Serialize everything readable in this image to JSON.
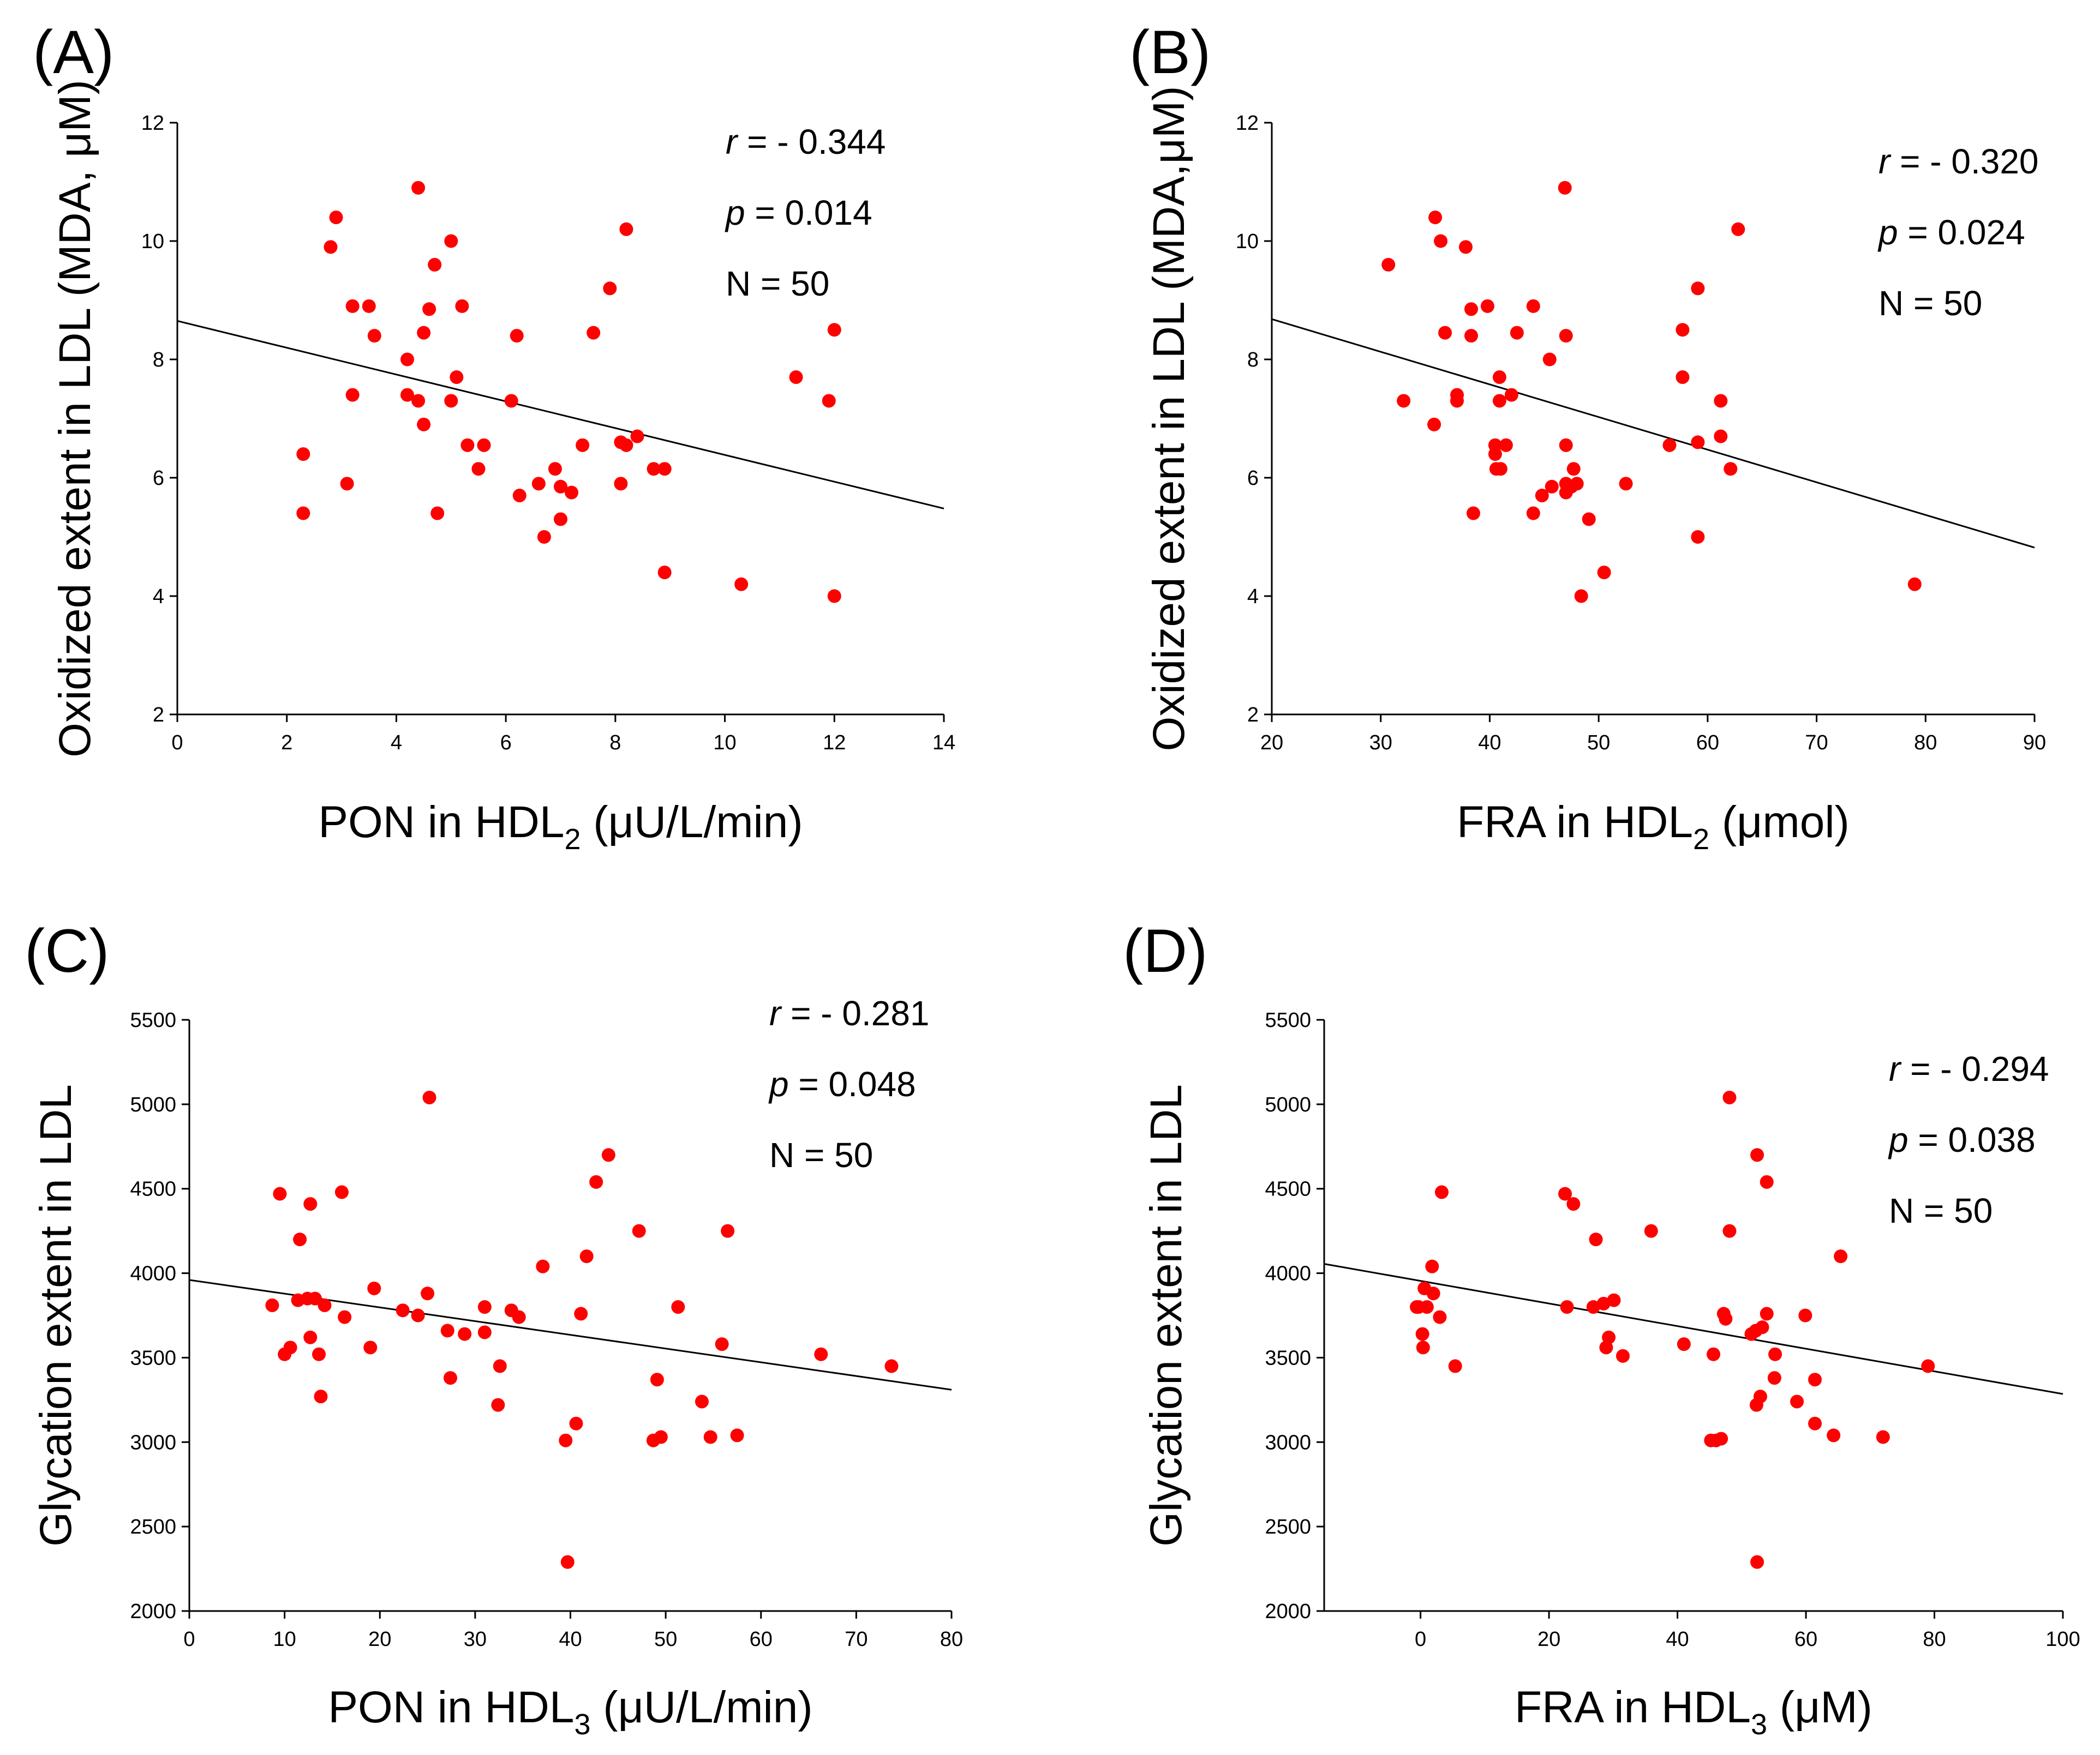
{
  "chart_data": [
    {
      "type": "scatter",
      "panel": "(A)",
      "xlabel_main": "PON in HDL",
      "xlabel_sub": "2",
      "xlabel_tail": " (μU/L/min)",
      "ylabel": "Oxidized extent in LDL (MDA, μM)",
      "xlim": [
        0,
        14
      ],
      "ylim": [
        2,
        12
      ],
      "xticks": [
        0,
        2,
        4,
        6,
        8,
        10,
        12,
        14
      ],
      "yticks": [
        2,
        4,
        6,
        8,
        10,
        12
      ],
      "xtick_labels": [
        "0",
        "2",
        "4",
        "6",
        "8",
        "10",
        "12",
        "14"
      ],
      "ytick_labels": [
        "2",
        "4",
        "6",
        "8",
        "10",
        "12"
      ],
      "regression": {
        "x0": 0,
        "y0": 8.65,
        "x1": 14,
        "y1": 5.48
      },
      "stats": {
        "r_label": "r",
        "r_value": " = - 0.344",
        "p_label": "p",
        "p_value": " = 0.014",
        "n_text": "N = 50"
      },
      "points": [
        [
          2.3,
          6.4
        ],
        [
          2.3,
          5.4
        ],
        [
          2.8,
          9.9
        ],
        [
          2.9,
          10.4
        ],
        [
          3.1,
          5.9
        ],
        [
          3.2,
          8.9
        ],
        [
          3.2,
          7.4
        ],
        [
          3.5,
          8.9
        ],
        [
          3.6,
          8.4
        ],
        [
          4.2,
          8.0
        ],
        [
          4.2,
          7.4
        ],
        [
          4.4,
          7.3
        ],
        [
          4.4,
          10.9
        ],
        [
          4.5,
          8.45
        ],
        [
          4.5,
          6.9
        ],
        [
          4.6,
          8.85
        ],
        [
          4.7,
          9.6
        ],
        [
          4.75,
          5.4
        ],
        [
          5.0,
          10.0
        ],
        [
          5.0,
          7.3
        ],
        [
          5.1,
          7.7
        ],
        [
          5.2,
          8.9
        ],
        [
          5.3,
          6.55
        ],
        [
          5.5,
          6.15
        ],
        [
          5.6,
          6.55
        ],
        [
          6.1,
          7.3
        ],
        [
          6.2,
          8.4
        ],
        [
          6.25,
          5.7
        ],
        [
          6.6,
          5.9
        ],
        [
          6.7,
          5.0
        ],
        [
          6.9,
          6.15
        ],
        [
          7.0,
          5.85
        ],
        [
          7.0,
          5.3
        ],
        [
          7.2,
          5.75
        ],
        [
          7.4,
          6.55
        ],
        [
          7.6,
          8.45
        ],
        [
          7.9,
          9.2
        ],
        [
          8.1,
          5.9
        ],
        [
          8.1,
          6.6
        ],
        [
          8.2,
          6.55
        ],
        [
          8.2,
          10.2
        ],
        [
          8.4,
          6.7
        ],
        [
          8.7,
          6.15
        ],
        [
          8.9,
          6.15
        ],
        [
          8.9,
          4.4
        ],
        [
          10.3,
          4.2
        ],
        [
          11.3,
          7.7
        ],
        [
          11.9,
          7.3
        ],
        [
          12.0,
          8.5
        ],
        [
          12.0,
          4.0
        ]
      ]
    },
    {
      "type": "scatter",
      "panel": "(B)",
      "xlabel_main": "FRA in HDL",
      "xlabel_sub": "2",
      "xlabel_tail": " (μmol)",
      "ylabel": "Oxidized extent in LDL (MDA,μM)",
      "xlim": [
        20,
        90
      ],
      "ylim": [
        2,
        12
      ],
      "xticks": [
        20,
        30,
        40,
        50,
        60,
        70,
        80,
        90
      ],
      "yticks": [
        2,
        4,
        6,
        8,
        10,
        12
      ],
      "xtick_labels": [
        "20",
        "30",
        "40",
        "50",
        "60",
        "70",
        "80",
        "90"
      ],
      "ytick_labels": [
        "2",
        "4",
        "6",
        "8",
        "10",
        "12"
      ],
      "regression": {
        "x0": 20,
        "y0": 8.68,
        "x1": 90,
        "y1": 4.82
      },
      "stats": {
        "r_label": "r",
        "r_value": " = - 0.320",
        "p_label": "p",
        "p_value": " = 0.024",
        "n_text": "N = 50"
      },
      "points": [
        [
          30.7,
          9.6
        ],
        [
          32.1,
          7.3
        ],
        [
          34.9,
          6.9
        ],
        [
          35.0,
          10.4
        ],
        [
          35.5,
          10.0
        ],
        [
          35.9,
          8.45
        ],
        [
          37.0,
          7.4
        ],
        [
          37.0,
          7.3
        ],
        [
          37.8,
          9.9
        ],
        [
          38.3,
          8.85
        ],
        [
          38.3,
          8.4
        ],
        [
          38.5,
          5.4
        ],
        [
          39.8,
          8.9
        ],
        [
          40.5,
          6.55
        ],
        [
          40.5,
          6.4
        ],
        [
          40.6,
          6.15
        ],
        [
          40.9,
          7.7
        ],
        [
          40.9,
          7.3
        ],
        [
          41.0,
          6.15
        ],
        [
          41.5,
          6.55
        ],
        [
          42.0,
          7.4
        ],
        [
          42.5,
          8.45
        ],
        [
          44.0,
          8.9
        ],
        [
          44.0,
          5.4
        ],
        [
          44.8,
          5.7
        ],
        [
          45.5,
          8.0
        ],
        [
          45.7,
          5.85
        ],
        [
          46.9,
          10.9
        ],
        [
          47.0,
          8.4
        ],
        [
          47.0,
          6.55
        ],
        [
          47.0,
          5.9
        ],
        [
          47.0,
          5.75
        ],
        [
          47.5,
          5.85
        ],
        [
          47.7,
          6.15
        ],
        [
          48.0,
          5.9
        ],
        [
          48.4,
          4.0
        ],
        [
          49.1,
          5.3
        ],
        [
          50.5,
          4.4
        ],
        [
          52.5,
          5.9
        ],
        [
          56.5,
          6.55
        ],
        [
          57.7,
          8.5
        ],
        [
          57.7,
          7.7
        ],
        [
          59.1,
          9.2
        ],
        [
          59.1,
          6.6
        ],
        [
          59.1,
          5.0
        ],
        [
          61.2,
          7.3
        ],
        [
          61.2,
          6.7
        ],
        [
          62.1,
          6.15
        ],
        [
          62.8,
          10.2
        ],
        [
          79.0,
          4.2
        ]
      ]
    },
    {
      "type": "scatter",
      "panel": "(C)",
      "xlabel_main": "PON in HDL",
      "xlabel_sub": "3",
      "xlabel_tail": " (μU/L/min)",
      "ylabel": "Glycation extent in LDL",
      "xlim": [
        0,
        80
      ],
      "ylim": [
        2000,
        5500
      ],
      "xticks": [
        0,
        10,
        20,
        30,
        40,
        50,
        60,
        70,
        80
      ],
      "yticks": [
        2000,
        2500,
        3000,
        3500,
        4000,
        4500,
        5000,
        5500
      ],
      "xtick_labels": [
        "0",
        "10",
        "20",
        "30",
        "40",
        "50",
        "60",
        "70",
        "80"
      ],
      "ytick_labels": [
        "2000",
        "2500",
        "3000",
        "3500",
        "4000",
        "4500",
        "5000",
        "5500"
      ],
      "regression": {
        "x0": 0,
        "y0": 3960,
        "x1": 80,
        "y1": 3310
      },
      "stats": {
        "r_label": "r",
        "r_value": " = - 0.281",
        "p_label": "p",
        "p_value": " = 0.048",
        "n_text": "N = 50"
      },
      "points": [
        [
          8.7,
          3810
        ],
        [
          9.5,
          4470
        ],
        [
          10.0,
          3520
        ],
        [
          10.6,
          3560
        ],
        [
          11.4,
          3840
        ],
        [
          11.6,
          4200
        ],
        [
          12.4,
          3850
        ],
        [
          12.7,
          3620
        ],
        [
          12.7,
          4410
        ],
        [
          13.2,
          3850
        ],
        [
          13.6,
          3520
        ],
        [
          13.8,
          3270
        ],
        [
          14.2,
          3810
        ],
        [
          16.0,
          4480
        ],
        [
          16.3,
          3740
        ],
        [
          19.0,
          3560
        ],
        [
          19.4,
          3910
        ],
        [
          22.4,
          3780
        ],
        [
          24.0,
          3750
        ],
        [
          25.0,
          3880
        ],
        [
          25.2,
          5040
        ],
        [
          27.1,
          3660
        ],
        [
          27.4,
          3380
        ],
        [
          28.9,
          3640
        ],
        [
          31.0,
          3800
        ],
        [
          31.0,
          3650
        ],
        [
          32.4,
          3220
        ],
        [
          32.6,
          3450
        ],
        [
          33.8,
          3780
        ],
        [
          34.6,
          3740
        ],
        [
          37.1,
          4040
        ],
        [
          39.5,
          3010
        ],
        [
          39.7,
          2290
        ],
        [
          40.6,
          3110
        ],
        [
          41.1,
          3760
        ],
        [
          41.7,
          4100
        ],
        [
          42.7,
          4540
        ],
        [
          44.0,
          4700
        ],
        [
          47.2,
          4250
        ],
        [
          48.7,
          3010
        ],
        [
          49.1,
          3370
        ],
        [
          49.5,
          3030
        ],
        [
          51.3,
          3800
        ],
        [
          53.8,
          3240
        ],
        [
          54.7,
          3030
        ],
        [
          55.9,
          3580
        ],
        [
          56.5,
          4250
        ],
        [
          57.5,
          3040
        ],
        [
          66.3,
          3520
        ],
        [
          73.7,
          3450
        ]
      ]
    },
    {
      "type": "scatter",
      "panel": "(D)",
      "xlabel_main": "FRA in HDL",
      "xlabel_sub": "3",
      "xlabel_tail": " (μM)",
      "ylabel": "Glycation extent in LDL",
      "xlim": [
        -15,
        100
      ],
      "ylim": [
        2000,
        5500
      ],
      "xticks": [
        0,
        20,
        40,
        60,
        80,
        100
      ],
      "yticks": [
        2000,
        2500,
        3000,
        3500,
        4000,
        4500,
        5000,
        5500
      ],
      "xtick_labels": [
        "0",
        "20",
        "40",
        "60",
        "80",
        "100"
      ],
      "ytick_labels": [
        "2000",
        "2500",
        "3000",
        "3500",
        "4000",
        "4500",
        "5000",
        "5500"
      ],
      "regression": {
        "x0": -15,
        "y0": 4055,
        "x1": 100,
        "y1": 3285
      },
      "stats": {
        "r_label": "r",
        "r_value": " = - 0.294",
        "p_label": "p",
        "p_value": " = 0.038",
        "n_text": "N = 50"
      },
      "points": [
        [
          -0.3,
          3800
        ],
        [
          0.3,
          3640
        ],
        [
          0.4,
          3560
        ],
        [
          0.6,
          3910
        ],
        [
          1.0,
          3800
        ],
        [
          1.8,
          4040
        ],
        [
          2.0,
          3880
        ],
        [
          3.0,
          3740
        ],
        [
          3.3,
          4480
        ],
        [
          5.4,
          3450
        ],
        [
          22.5,
          4470
        ],
        [
          22.8,
          3800
        ],
        [
          23.8,
          4410
        ],
        [
          26.9,
          3800
        ],
        [
          27.3,
          4200
        ],
        [
          28.5,
          3820
        ],
        [
          28.9,
          3560
        ],
        [
          29.3,
          3620
        ],
        [
          30.1,
          3840
        ],
        [
          31.5,
          3510
        ],
        [
          35.9,
          4250
        ],
        [
          41.0,
          3580
        ],
        [
          45.2,
          3010
        ],
        [
          45.6,
          3520
        ],
        [
          46.0,
          3010
        ],
        [
          46.8,
          3020
        ],
        [
          47.2,
          3760
        ],
        [
          47.5,
          3730
        ],
        [
          48.1,
          4250
        ],
        [
          48.1,
          5040
        ],
        [
          51.5,
          3640
        ],
        [
          52.2,
          3660
        ],
        [
          52.3,
          3220
        ],
        [
          52.4,
          2290
        ],
        [
          52.4,
          4700
        ],
        [
          52.9,
          3270
        ],
        [
          53.2,
          3680
        ],
        [
          53.9,
          4540
        ],
        [
          53.9,
          3760
        ],
        [
          55.1,
          3380
        ],
        [
          55.2,
          3520
        ],
        [
          58.6,
          3240
        ],
        [
          59.9,
          3750
        ],
        [
          61.4,
          3110
        ],
        [
          61.4,
          3370
        ],
        [
          64.3,
          3040
        ],
        [
          65.4,
          4100
        ],
        [
          72.0,
          3030
        ],
        [
          79.0,
          3450
        ],
        [
          -0.6,
          3800
        ]
      ]
    }
  ]
}
